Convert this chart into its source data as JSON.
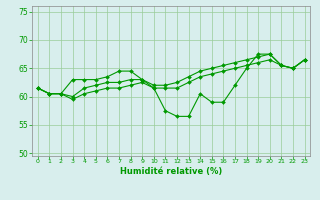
{
  "xlabel": "Humidité relative (%)",
  "xlim": [
    -0.5,
    23.5
  ],
  "ylim": [
    49.5,
    76
  ],
  "yticks": [
    50,
    55,
    60,
    65,
    70,
    75
  ],
  "xticks": [
    0,
    1,
    2,
    3,
    4,
    5,
    6,
    7,
    8,
    9,
    10,
    11,
    12,
    13,
    14,
    15,
    16,
    17,
    18,
    19,
    20,
    21,
    22,
    23
  ],
  "bg_color": "#d8eeed",
  "grid_color": "#99cc99",
  "line_color": "#009900",
  "line1": [
    61.5,
    60.5,
    60.5,
    63.0,
    63.0,
    63.0,
    63.5,
    64.5,
    64.5,
    63.0,
    61.5,
    57.5,
    56.5,
    56.5,
    60.5,
    59.0,
    59.0,
    62.0,
    65.0,
    67.5,
    67.5,
    65.5,
    65.0,
    66.5
  ],
  "line2": [
    61.5,
    60.5,
    60.5,
    59.5,
    60.5,
    61.0,
    61.5,
    61.5,
    62.0,
    62.5,
    61.5,
    61.5,
    61.5,
    62.5,
    63.5,
    64.0,
    64.5,
    65.0,
    65.5,
    66.0,
    66.5,
    65.5,
    65.0,
    66.5
  ],
  "line3": [
    61.5,
    60.5,
    60.5,
    60.0,
    61.5,
    62.0,
    62.5,
    62.5,
    63.0,
    63.0,
    62.0,
    62.0,
    62.5,
    63.5,
    64.5,
    65.0,
    65.5,
    66.0,
    66.5,
    67.0,
    67.5,
    65.5,
    65.0,
    66.5
  ]
}
